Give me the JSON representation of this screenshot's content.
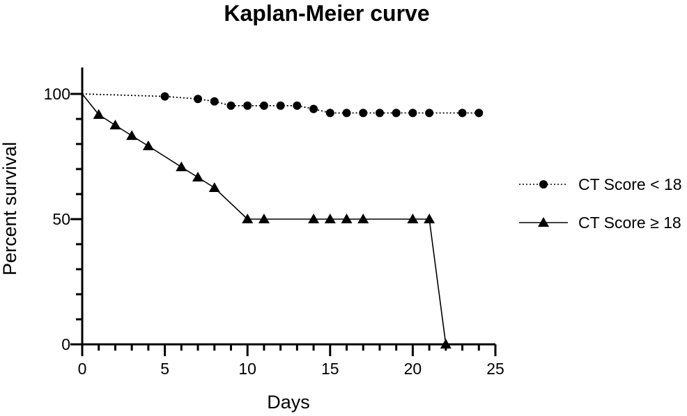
{
  "chart_data": {
    "type": "line",
    "title": "Kaplan-Meier curve",
    "xlabel": "Days",
    "ylabel": "Percent survival",
    "xlim": [
      0,
      25
    ],
    "ylim": [
      0,
      100
    ],
    "x_ticks": [
      0,
      5,
      10,
      15,
      20,
      25
    ],
    "y_ticks": [
      0,
      50,
      100
    ],
    "grid": false,
    "legend_position": "right",
    "series": [
      {
        "name": "CT Score < 18",
        "line_style": "dotted",
        "marker": "circle",
        "color": "#000000",
        "x": [
          0,
          5,
          7,
          8,
          9,
          10,
          11,
          12,
          13,
          14,
          15,
          16,
          17,
          18,
          19,
          20,
          21,
          23,
          24
        ],
        "y": [
          100,
          99,
          98,
          97,
          95.3,
          95.3,
          95.3,
          95.3,
          95.3,
          94,
          92.4,
          92.4,
          92.4,
          92.4,
          92.4,
          92.4,
          92.4,
          92.4,
          92.4
        ],
        "markers_x": [
          5,
          7,
          8,
          9,
          10,
          11,
          12,
          13,
          14,
          15,
          16,
          17,
          18,
          19,
          20,
          21,
          23,
          24
        ]
      },
      {
        "name": "CT Score ≥ 18",
        "line_style": "solid",
        "marker": "triangle",
        "color": "#000000",
        "x": [
          0,
          1,
          2,
          3,
          4,
          6,
          7,
          8,
          10,
          11,
          14,
          15,
          16,
          17,
          20,
          21,
          22
        ],
        "y": [
          100,
          91.7,
          87.5,
          83.3,
          79.2,
          70.8,
          66.7,
          62.5,
          50,
          50,
          50,
          50,
          50,
          50,
          50,
          50,
          0
        ],
        "markers_x": [
          1,
          2,
          3,
          4,
          6,
          7,
          8,
          10,
          11,
          14,
          15,
          16,
          17,
          20,
          21,
          22
        ]
      }
    ]
  }
}
